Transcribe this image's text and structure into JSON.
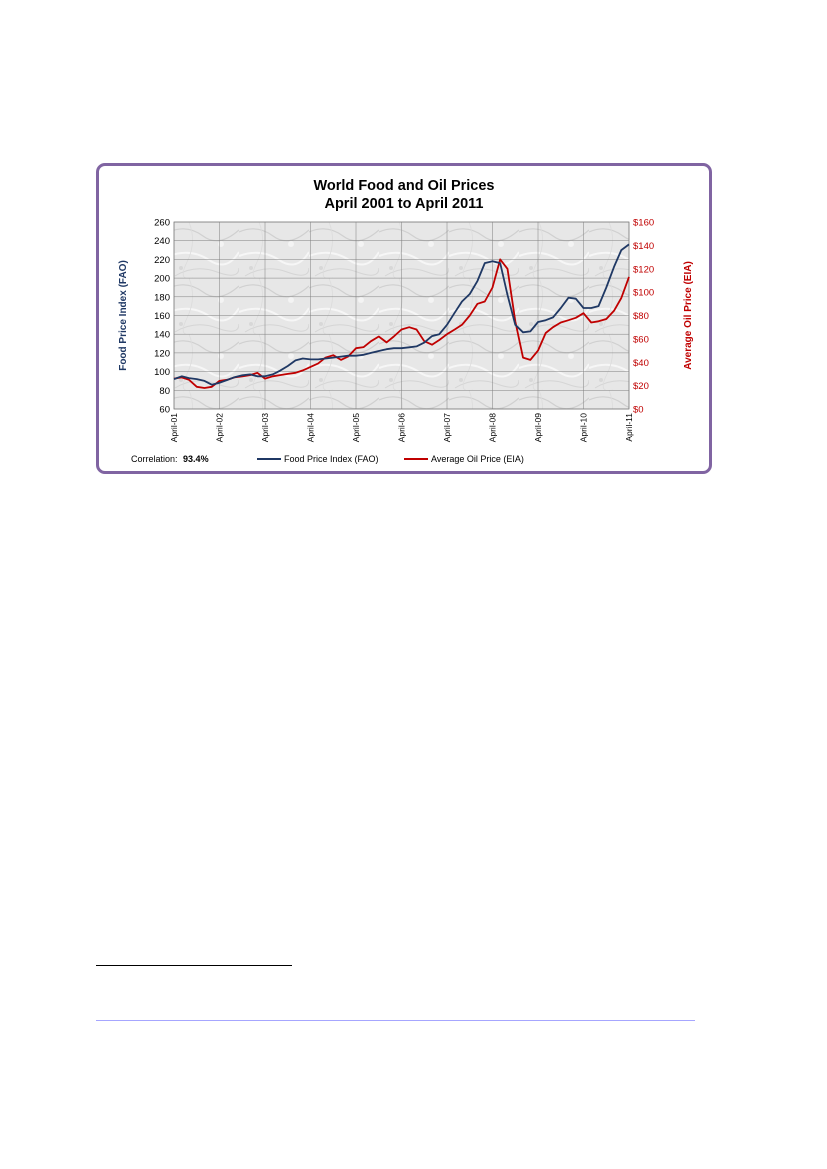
{
  "colors": {
    "frame": "#8064a2",
    "food": "#1f3864",
    "oil": "#c00000",
    "grid": "#7f7f7f"
  },
  "chart_data": {
    "type": "line",
    "title": [
      "World Food and Oil Prices",
      "April 2001 to April 2011"
    ],
    "ylabel": "Food Price Index (FAO)",
    "y2label": "Average Oil Price (EIA)",
    "ylim": [
      60,
      260
    ],
    "y2lim": [
      0,
      160
    ],
    "yticks": [
      "260",
      "240",
      "220",
      "200",
      "180",
      "160",
      "140",
      "120",
      "100",
      "80",
      "60"
    ],
    "y2ticks": [
      "$160",
      "$140",
      "$120",
      "$100",
      "$80",
      "$60",
      "$40",
      "$20",
      "$0"
    ],
    "xticks": [
      "April-01",
      "April-02",
      "April-03",
      "April-04",
      "April-05",
      "April-06",
      "April-07",
      "April-08",
      "April-09",
      "April-10",
      "April-11"
    ],
    "xlim": [
      2001.25,
      2011.25
    ],
    "grid": true,
    "background": "marble",
    "legend_position": "bottom",
    "annotation": {
      "label": "Correlation:",
      "value": "93.4%"
    },
    "series": [
      {
        "name": "Food Price Index (FAO)",
        "axis": "left",
        "color": "#1f3864",
        "x": [
          2001.25,
          2001.42,
          2001.58,
          2001.75,
          2001.92,
          2002.08,
          2002.25,
          2002.42,
          2002.58,
          2002.75,
          2002.92,
          2003.08,
          2003.25,
          2003.42,
          2003.58,
          2003.75,
          2003.92,
          2004.08,
          2004.25,
          2004.42,
          2004.58,
          2004.75,
          2004.92,
          2005.08,
          2005.25,
          2005.42,
          2005.58,
          2005.75,
          2005.92,
          2006.08,
          2006.25,
          2006.42,
          2006.58,
          2006.75,
          2006.92,
          2007.08,
          2007.25,
          2007.42,
          2007.58,
          2007.75,
          2007.92,
          2008.08,
          2008.25,
          2008.42,
          2008.58,
          2008.75,
          2008.92,
          2009.08,
          2009.25,
          2009.42,
          2009.58,
          2009.75,
          2009.92,
          2010.08,
          2010.25,
          2010.42,
          2010.58,
          2010.75,
          2010.92,
          2011.08,
          2011.25
        ],
        "values": [
          92,
          95,
          93,
          92,
          90,
          86,
          88,
          91,
          94,
          96,
          97,
          95,
          95,
          97,
          101,
          106,
          112,
          114,
          113,
          113,
          114,
          115,
          116,
          117,
          117,
          118,
          120,
          122,
          124,
          125,
          125,
          126,
          127,
          131,
          138,
          140,
          150,
          163,
          175,
          183,
          197,
          216,
          218,
          216,
          182,
          150,
          142,
          143,
          153,
          155,
          158,
          168,
          179,
          178,
          168,
          168,
          170,
          190,
          212,
          230,
          236
        ]
      },
      {
        "name": "Average Oil Price (EIA)",
        "axis": "right",
        "color": "#c00000",
        "x": [
          2001.25,
          2001.42,
          2001.58,
          2001.75,
          2001.92,
          2002.08,
          2002.25,
          2002.42,
          2002.58,
          2002.75,
          2002.92,
          2003.08,
          2003.25,
          2003.42,
          2003.58,
          2003.75,
          2003.92,
          2004.08,
          2004.25,
          2004.42,
          2004.58,
          2004.75,
          2004.92,
          2005.08,
          2005.25,
          2005.42,
          2005.58,
          2005.75,
          2005.92,
          2006.08,
          2006.25,
          2006.42,
          2006.58,
          2006.75,
          2006.92,
          2007.08,
          2007.25,
          2007.42,
          2007.58,
          2007.75,
          2007.92,
          2008.08,
          2008.25,
          2008.42,
          2008.58,
          2008.75,
          2008.92,
          2009.08,
          2009.25,
          2009.42,
          2009.58,
          2009.75,
          2009.92,
          2010.08,
          2010.25,
          2010.42,
          2010.58,
          2010.75,
          2010.92,
          2011.08,
          2011.25
        ],
        "values": [
          26,
          27,
          25,
          19,
          18,
          19,
          24,
          25,
          27,
          28,
          29,
          31,
          26,
          28,
          29,
          30,
          31,
          33,
          36,
          39,
          44,
          46,
          42,
          45,
          52,
          53,
          58,
          62,
          57,
          62,
          68,
          70,
          68,
          58,
          55,
          59,
          64,
          68,
          72,
          80,
          90,
          92,
          104,
          128,
          120,
          75,
          44,
          42,
          50,
          65,
          70,
          74,
          76,
          78,
          82,
          74,
          75,
          77,
          84,
          95,
          113
        ]
      }
    ]
  }
}
